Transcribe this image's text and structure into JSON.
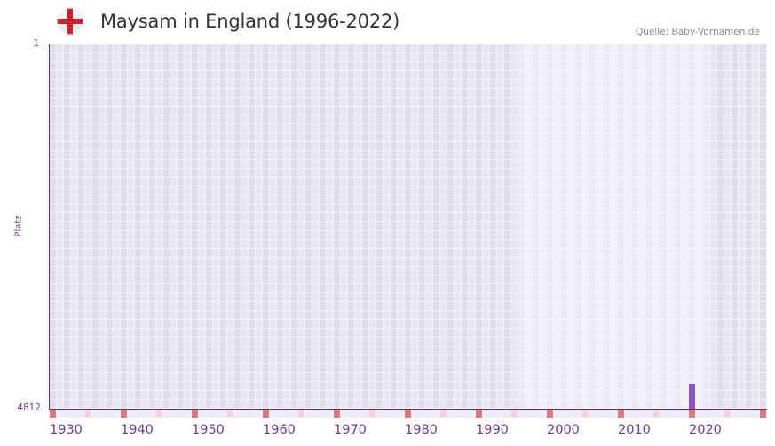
{
  "header": {
    "title": "Maysam in England (1996-2022)",
    "flag_icon": "england-flag-icon",
    "source": "Quelle: Baby-Vornamen.de"
  },
  "colors": {
    "axis": "#5c2d91",
    "bar": "#8c50c8",
    "decade_marker": "#e5767f",
    "half_decade_marker": "#f7d3de",
    "highlight_range": "#ece6f9",
    "background_grid": "#e1dcee"
  },
  "chart_data": {
    "type": "bar",
    "title": "Maysam in England (1996-2022)",
    "xlabel": "",
    "ylabel": "Platz",
    "x_range": [
      1930,
      2030
    ],
    "highlight_range": [
      1996,
      2022
    ],
    "y_range": [
      1,
      4812
    ],
    "y_inverted": true,
    "y_ticks": [
      "1",
      "4812"
    ],
    "x_ticks": [
      "1930",
      "1940",
      "1950",
      "1960",
      "1970",
      "1980",
      "1990",
      "2000",
      "2010",
      "2020"
    ],
    "grid": true,
    "legend": null,
    "series": [
      {
        "name": "Platz",
        "x": [
          2020
        ],
        "values": [
          4483
        ]
      }
    ]
  }
}
